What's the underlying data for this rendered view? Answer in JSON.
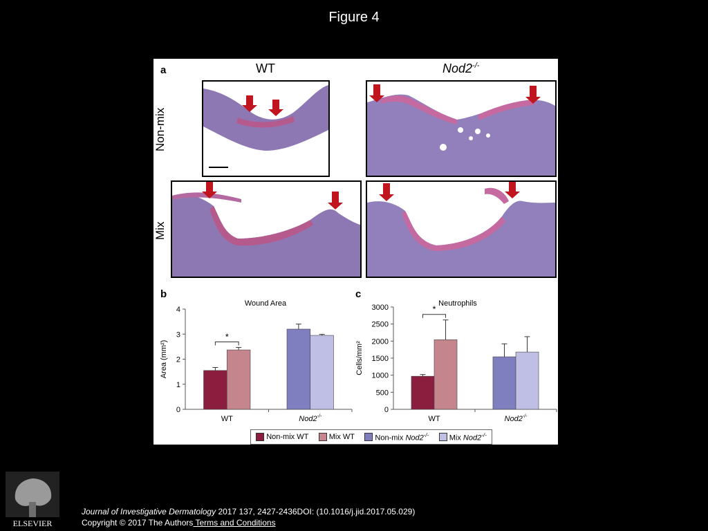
{
  "page_title": "Figure 4",
  "panel_a": {
    "letter": "a",
    "col_wt": "WT",
    "col_nod2": "Nod2",
    "col_nod2_sup": "-/-",
    "row_nonmix": "Non-mix",
    "row_mix": "Mix"
  },
  "panel_b": {
    "letter": "b"
  },
  "panel_c": {
    "letter": "c"
  },
  "chart_data": [
    {
      "type": "bar",
      "title": "Wound Area",
      "ylabel": "Area (mm²)",
      "ylim": [
        0,
        4
      ],
      "yticks": [
        0,
        1,
        2,
        3,
        4
      ],
      "groups": [
        "WT",
        "Nod2-/-"
      ],
      "series": [
        {
          "name": "Non-mix WT",
          "color": "#8B1E3F",
          "values": [
            1.55
          ],
          "errors": [
            0.12
          ],
          "group": 0
        },
        {
          "name": "Mix WT",
          "color": "#C4868C",
          "values": [
            2.37
          ],
          "errors": [
            0.1
          ],
          "group": 0
        },
        {
          "name": "Non-mix Nod2-/-",
          "color": "#7F7FBF",
          "values": [
            3.2
          ],
          "errors": [
            0.2
          ],
          "group": 1
        },
        {
          "name": "Mix Nod2-/-",
          "color": "#BFBFE6",
          "values": [
            2.95
          ],
          "errors": [
            0.04
          ],
          "group": 1
        }
      ],
      "annotation": "*"
    },
    {
      "type": "bar",
      "title": "Neutrophils",
      "ylabel": "Cells/mm²",
      "ylim": [
        0,
        3000
      ],
      "yticks": [
        0,
        500,
        1000,
        1500,
        2000,
        2500,
        3000
      ],
      "groups": [
        "WT",
        "Nod2-/-"
      ],
      "series": [
        {
          "name": "Non-mix WT",
          "color": "#8B1E3F",
          "values": [
            970
          ],
          "errors": [
            50
          ],
          "group": 0
        },
        {
          "name": "Mix WT",
          "color": "#C4868C",
          "values": [
            2040
          ],
          "errors": [
            580
          ],
          "group": 0
        },
        {
          "name": "Non-mix Nod2-/-",
          "color": "#7F7FBF",
          "values": [
            1540
          ],
          "errors": [
            380
          ],
          "group": 1
        },
        {
          "name": "Mix Nod2-/-",
          "color": "#BFBFE6",
          "values": [
            1680
          ],
          "errors": [
            450
          ],
          "group": 1
        }
      ],
      "annotation": "*"
    }
  ],
  "legend": {
    "items": [
      {
        "label": "Non-mix WT",
        "color": "#8B1E3F"
      },
      {
        "label": "Mix WT",
        "color": "#C4868C"
      },
      {
        "label": "Non-mix ",
        "italic": "Nod2",
        "sup": "-/-",
        "color": "#7F7FBF"
      },
      {
        "label": "Mix ",
        "italic": "Nod2",
        "sup": "-/-",
        "color": "#BFBFE6"
      }
    ]
  },
  "footer": {
    "publisher": "ELSEVIER",
    "journal_name": "Journal of Investigative Dermatology",
    "journal_rest": " 2017 137, 2427-2436DOI: (10.1016/j.jid.2017.05.029)",
    "copyright": "Copyright © 2017 The Authors",
    "terms_link": " Terms and Conditions"
  }
}
